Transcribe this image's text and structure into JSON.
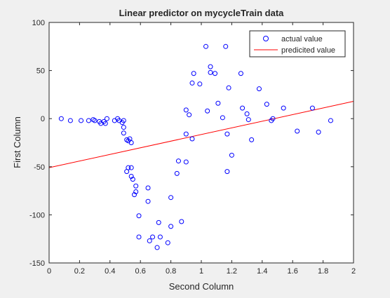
{
  "chart_data": {
    "type": "scatter",
    "title": "Linear predictor on mycycleTrain data",
    "xlabel": "Second Column",
    "ylabel": "First Column",
    "xlim": [
      0,
      2
    ],
    "ylim": [
      -150,
      100
    ],
    "x_ticks": [
      "0",
      "0.2",
      "0.4",
      "0.6",
      "0.8",
      "1",
      "1.2",
      "1.4",
      "1.6",
      "1.8",
      "2"
    ],
    "y_ticks": [
      "-150",
      "-100",
      "-50",
      "0",
      "50",
      "100"
    ],
    "grid": false,
    "legend_position": "top-right",
    "legend": {
      "actual_label": "actual value",
      "predicted_label": "predicited value"
    },
    "series": [
      {
        "name": "actual value",
        "type": "scatter",
        "color": "#0000ff",
        "marker": "circle",
        "points": [
          [
            0.08,
            0
          ],
          [
            0.14,
            -2
          ],
          [
            0.21,
            -2
          ],
          [
            0.26,
            -2
          ],
          [
            0.29,
            -1
          ],
          [
            0.3,
            -2
          ],
          [
            0.33,
            -3
          ],
          [
            0.34,
            -5
          ],
          [
            0.36,
            -3
          ],
          [
            0.37,
            -5
          ],
          [
            0.38,
            0
          ],
          [
            0.43,
            -2
          ],
          [
            0.45,
            0
          ],
          [
            0.46,
            -2
          ],
          [
            0.48,
            -4
          ],
          [
            0.49,
            -2
          ],
          [
            0.49,
            -9
          ],
          [
            0.49,
            -15
          ],
          [
            0.51,
            -22
          ],
          [
            0.52,
            -23
          ],
          [
            0.53,
            -21
          ],
          [
            0.54,
            -25
          ],
          [
            0.51,
            -55
          ],
          [
            0.52,
            -51
          ],
          [
            0.54,
            -51
          ],
          [
            0.54,
            -60
          ],
          [
            0.55,
            -63
          ],
          [
            0.56,
            -79
          ],
          [
            0.57,
            -70
          ],
          [
            0.57,
            -76
          ],
          [
            0.59,
            -101
          ],
          [
            0.59,
            -123
          ],
          [
            0.65,
            -72
          ],
          [
            0.65,
            -86
          ],
          [
            0.66,
            -127
          ],
          [
            0.68,
            -123
          ],
          [
            0.71,
            -134
          ],
          [
            0.72,
            -108
          ],
          [
            0.73,
            -123
          ],
          [
            0.78,
            -129
          ],
          [
            0.8,
            -112
          ],
          [
            0.8,
            -82
          ],
          [
            0.84,
            -57
          ],
          [
            0.85,
            -44
          ],
          [
            0.87,
            -107
          ],
          [
            0.9,
            -45
          ],
          [
            0.9,
            -16
          ],
          [
            0.9,
            9
          ],
          [
            0.92,
            4
          ],
          [
            0.94,
            -21
          ],
          [
            0.94,
            37
          ],
          [
            0.95,
            47
          ],
          [
            0.99,
            36
          ],
          [
            1.03,
            75
          ],
          [
            1.04,
            8
          ],
          [
            1.06,
            54
          ],
          [
            1.06,
            48
          ],
          [
            1.09,
            47
          ],
          [
            1.11,
            16
          ],
          [
            1.14,
            1
          ],
          [
            1.16,
            75
          ],
          [
            1.17,
            -16
          ],
          [
            1.17,
            -55
          ],
          [
            1.18,
            32
          ],
          [
            1.2,
            -38
          ],
          [
            1.26,
            47
          ],
          [
            1.27,
            11
          ],
          [
            1.3,
            5
          ],
          [
            1.31,
            -1
          ],
          [
            1.33,
            -22
          ],
          [
            1.38,
            31
          ],
          [
            1.43,
            15
          ],
          [
            1.46,
            -2
          ],
          [
            1.47,
            0
          ],
          [
            1.54,
            11
          ],
          [
            1.63,
            -13
          ],
          [
            1.73,
            11
          ],
          [
            1.77,
            -14
          ],
          [
            1.85,
            -2
          ]
        ]
      },
      {
        "name": "predicited value",
        "type": "line",
        "color": "#ff0000",
        "points": [
          [
            0,
            -51
          ],
          [
            2,
            18
          ]
        ]
      }
    ]
  }
}
